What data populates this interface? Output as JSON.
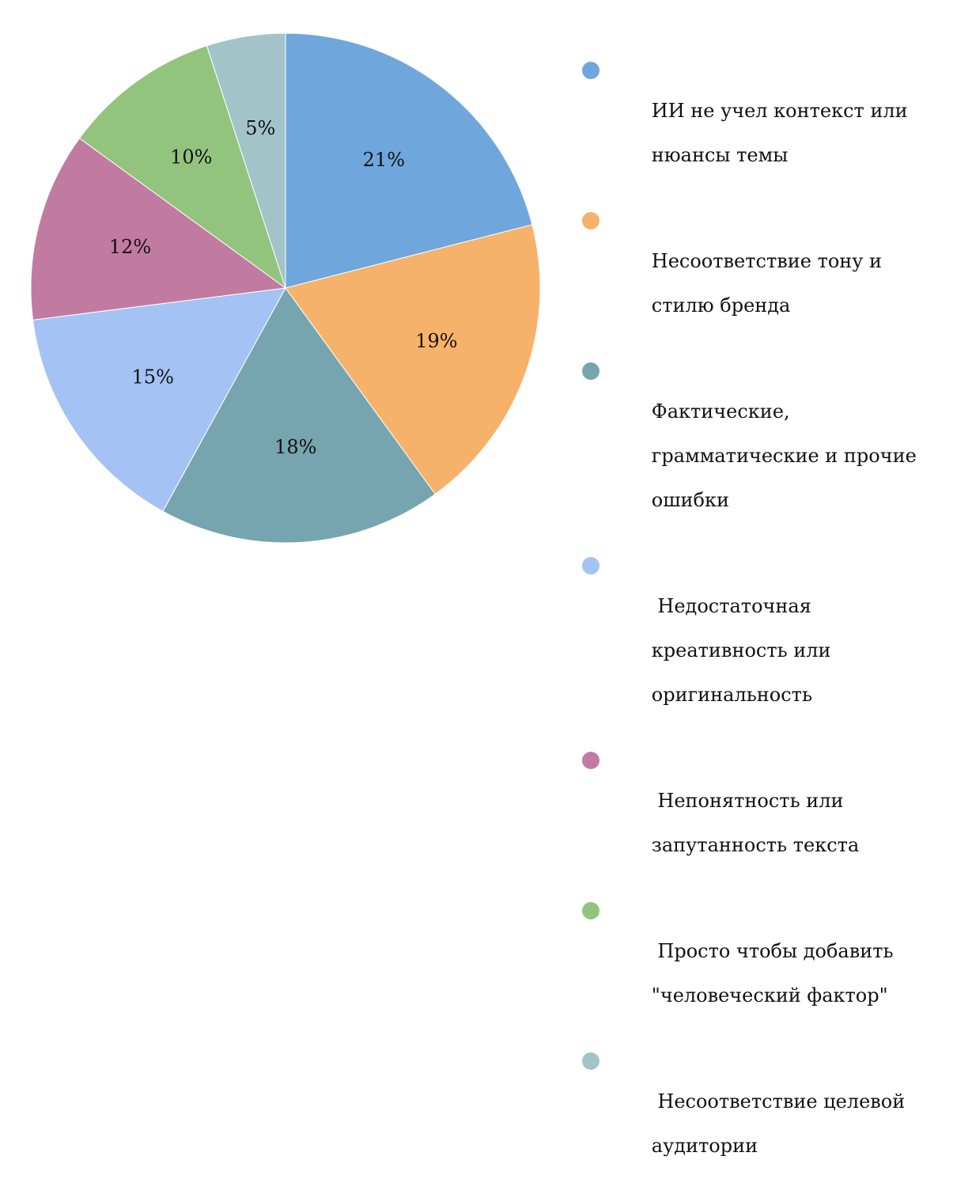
{
  "chart_data": {
    "type": "pie",
    "categories": [
      "ИИ не учел контекст или нюансы темы",
      "Несоответствие тону и стилю бренда",
      "Фактические, грамматические и прочие ошибки",
      " Недостаточная креативность или оригинальность",
      " Непонятность или запутанность текста",
      " Просто чтобы добавить \"человеческий фактор\"",
      " Несоответствие целевой аудитории"
    ],
    "values": [
      21,
      19,
      18,
      15,
      12,
      10,
      5
    ],
    "data_labels": [
      "21%",
      "19%",
      "18%",
      "15%",
      "12%",
      "10%",
      "5%"
    ],
    "colors": [
      "#6fa7dc",
      "#f6b26b",
      "#76a5af",
      "#a4c2f4",
      "#c27ba0",
      "#93c47d",
      "#a2c4c9"
    ],
    "legend_position": "right",
    "title": ""
  },
  "legend": {
    "items": [
      {
        "line1": "ИИ не учел контекст или",
        "line2": "нюансы темы",
        "line3": ""
      },
      {
        "line1": "Несоответствие тону и",
        "line2": "стилю бренда",
        "line3": ""
      },
      {
        "line1": "Фактические,",
        "line2": "грамматические и прочие",
        "line3": "ошибки"
      },
      {
        "line1": " Недостаточная",
        "line2": "креативность или",
        "line3": "оригинальность"
      },
      {
        "line1": " Непонятность или",
        "line2": "запутанность текста",
        "line3": ""
      },
      {
        "line1": " Просто чтобы добавить",
        "line2": "\"человеческий фактор\"",
        "line3": ""
      },
      {
        "line1": " Несоответствие целевой",
        "line2": "аудитории",
        "line3": ""
      }
    ]
  }
}
